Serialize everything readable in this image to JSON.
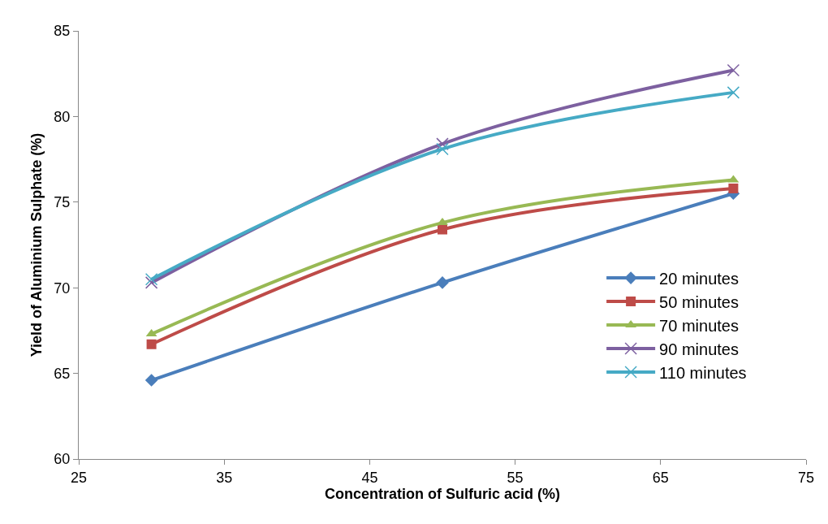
{
  "chart_data": {
    "type": "line",
    "xlabel": "Concentration of Sulfuric acid (%)",
    "ylabel": "Yield of Aluminium Sulphate (%)",
    "x": [
      30,
      50,
      70
    ],
    "series": [
      {
        "name": "20 minutes",
        "color": "#4a7ebb",
        "marker": "diamond",
        "values": [
          64.6,
          70.3,
          75.5
        ]
      },
      {
        "name": "50 minutes",
        "color": "#be4b48",
        "marker": "square",
        "values": [
          66.7,
          73.4,
          75.8
        ]
      },
      {
        "name": "70 minutes",
        "color": "#98b954",
        "marker": "triangle",
        "values": [
          67.3,
          73.8,
          76.3
        ]
      },
      {
        "name": "90 minutes",
        "color": "#7d60a0",
        "marker": "cross",
        "values": [
          70.3,
          78.4,
          82.7
        ]
      },
      {
        "name": "110 minutes",
        "color": "#46aac5",
        "marker": "cross",
        "values": [
          70.5,
          78.1,
          81.4
        ]
      }
    ],
    "xlim": [
      25,
      75
    ],
    "xticks": [
      25,
      35,
      45,
      55,
      65,
      75
    ],
    "ylim": [
      60,
      85
    ],
    "yticks": [
      60,
      65,
      70,
      75,
      80,
      85
    ],
    "grid": false,
    "legend": "right",
    "line_style": "solid"
  }
}
